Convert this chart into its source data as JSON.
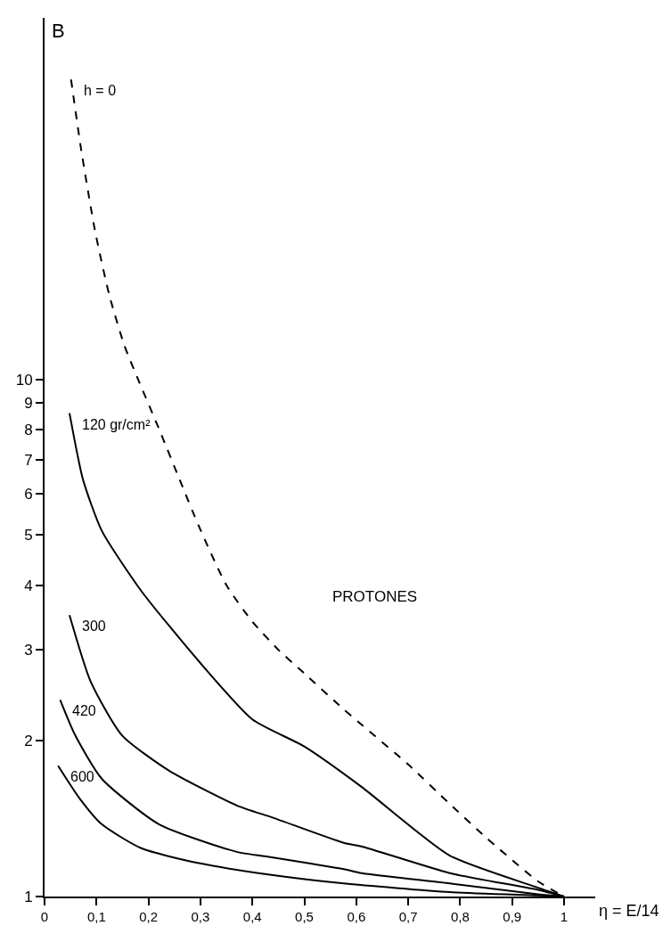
{
  "chart_data": {
    "type": "line",
    "xlabel": "η = E/14",
    "ylabel": "B",
    "log": "y",
    "xlim": [
      0,
      1.06
    ],
    "ylim": [
      1,
      50
    ],
    "xticks": [
      0,
      {
        "value": 0.1,
        "label": "0,1"
      },
      {
        "value": 0.2,
        "label": "0,2"
      },
      {
        "value": 0.3,
        "label": "0,3"
      },
      {
        "value": 0.4,
        "label": "0,4"
      },
      {
        "value": 0.5,
        "label": "0,5"
      },
      {
        "value": 0.6,
        "label": "0,6"
      },
      {
        "value": 0.7,
        "label": "0,7"
      },
      {
        "value": 0.8,
        "label": "0,8"
      },
      {
        "value": 0.9,
        "label": "0,9"
      },
      1
    ],
    "yticks": [
      1,
      2,
      3,
      4,
      5,
      6,
      7,
      8,
      9,
      10
    ],
    "marker": "none",
    "series": [
      {
        "name": "h = 0",
        "color": "#000000",
        "line_style": "dashed",
        "x": [
          0.051,
          0.07,
          0.097,
          0.125,
          0.154,
          0.18,
          0.223,
          0.26,
          0.297,
          0.35,
          0.4,
          0.45,
          0.5,
          0.576,
          0.61,
          0.7,
          0.78,
          0.85,
          0.95,
          1.0
        ],
        "values": [
          38,
          28,
          19.4,
          14.5,
          11.6,
          10,
          7.9,
          6.4,
          5.2,
          4.0,
          3.4,
          3.0,
          2.7,
          2.3,
          2.15,
          1.8,
          1.51,
          1.3,
          1.07,
          1.0
        ]
      },
      {
        "name": "120 gr/cm²",
        "color": "#000000",
        "line_style": "solid",
        "x": [
          0.048,
          0.074,
          0.11,
          0.186,
          0.297,
          0.4,
          0.5,
          0.61,
          0.78,
          0.95,
          1.0
        ],
        "values": [
          8.6,
          6.4,
          5.1,
          3.9,
          2.85,
          2.2,
          1.95,
          1.63,
          1.2,
          1.04,
          1.0
        ]
      },
      {
        "name": "300",
        "color": "#000000",
        "line_style": "solid",
        "x": [
          0.048,
          0.089,
          0.149,
          0.24,
          0.37,
          0.44,
          0.576,
          0.61,
          0.78,
          0.95,
          1.0
        ],
        "values": [
          3.5,
          2.6,
          2.05,
          1.75,
          1.5,
          1.42,
          1.27,
          1.25,
          1.11,
          1.03,
          1.0
        ]
      },
      {
        "name": "420",
        "color": "#000000",
        "line_style": "solid",
        "x": [
          0.03,
          0.059,
          0.11,
          0.22,
          0.37,
          0.44,
          0.576,
          0.61,
          0.78,
          0.95,
          1.0
        ],
        "values": [
          2.4,
          2.05,
          1.69,
          1.38,
          1.22,
          1.19,
          1.13,
          1.11,
          1.06,
          1.01,
          1.0
        ]
      },
      {
        "name": "600",
        "color": "#000000",
        "line_style": "solid",
        "x": [
          0.026,
          0.067,
          0.11,
          0.186,
          0.297,
          0.44,
          0.576,
          0.78,
          0.95,
          1.0
        ],
        "values": [
          1.79,
          1.55,
          1.38,
          1.24,
          1.16,
          1.1,
          1.06,
          1.02,
          1.005,
          1.0
        ]
      }
    ],
    "annotations": [
      "PROTONES"
    ]
  }
}
